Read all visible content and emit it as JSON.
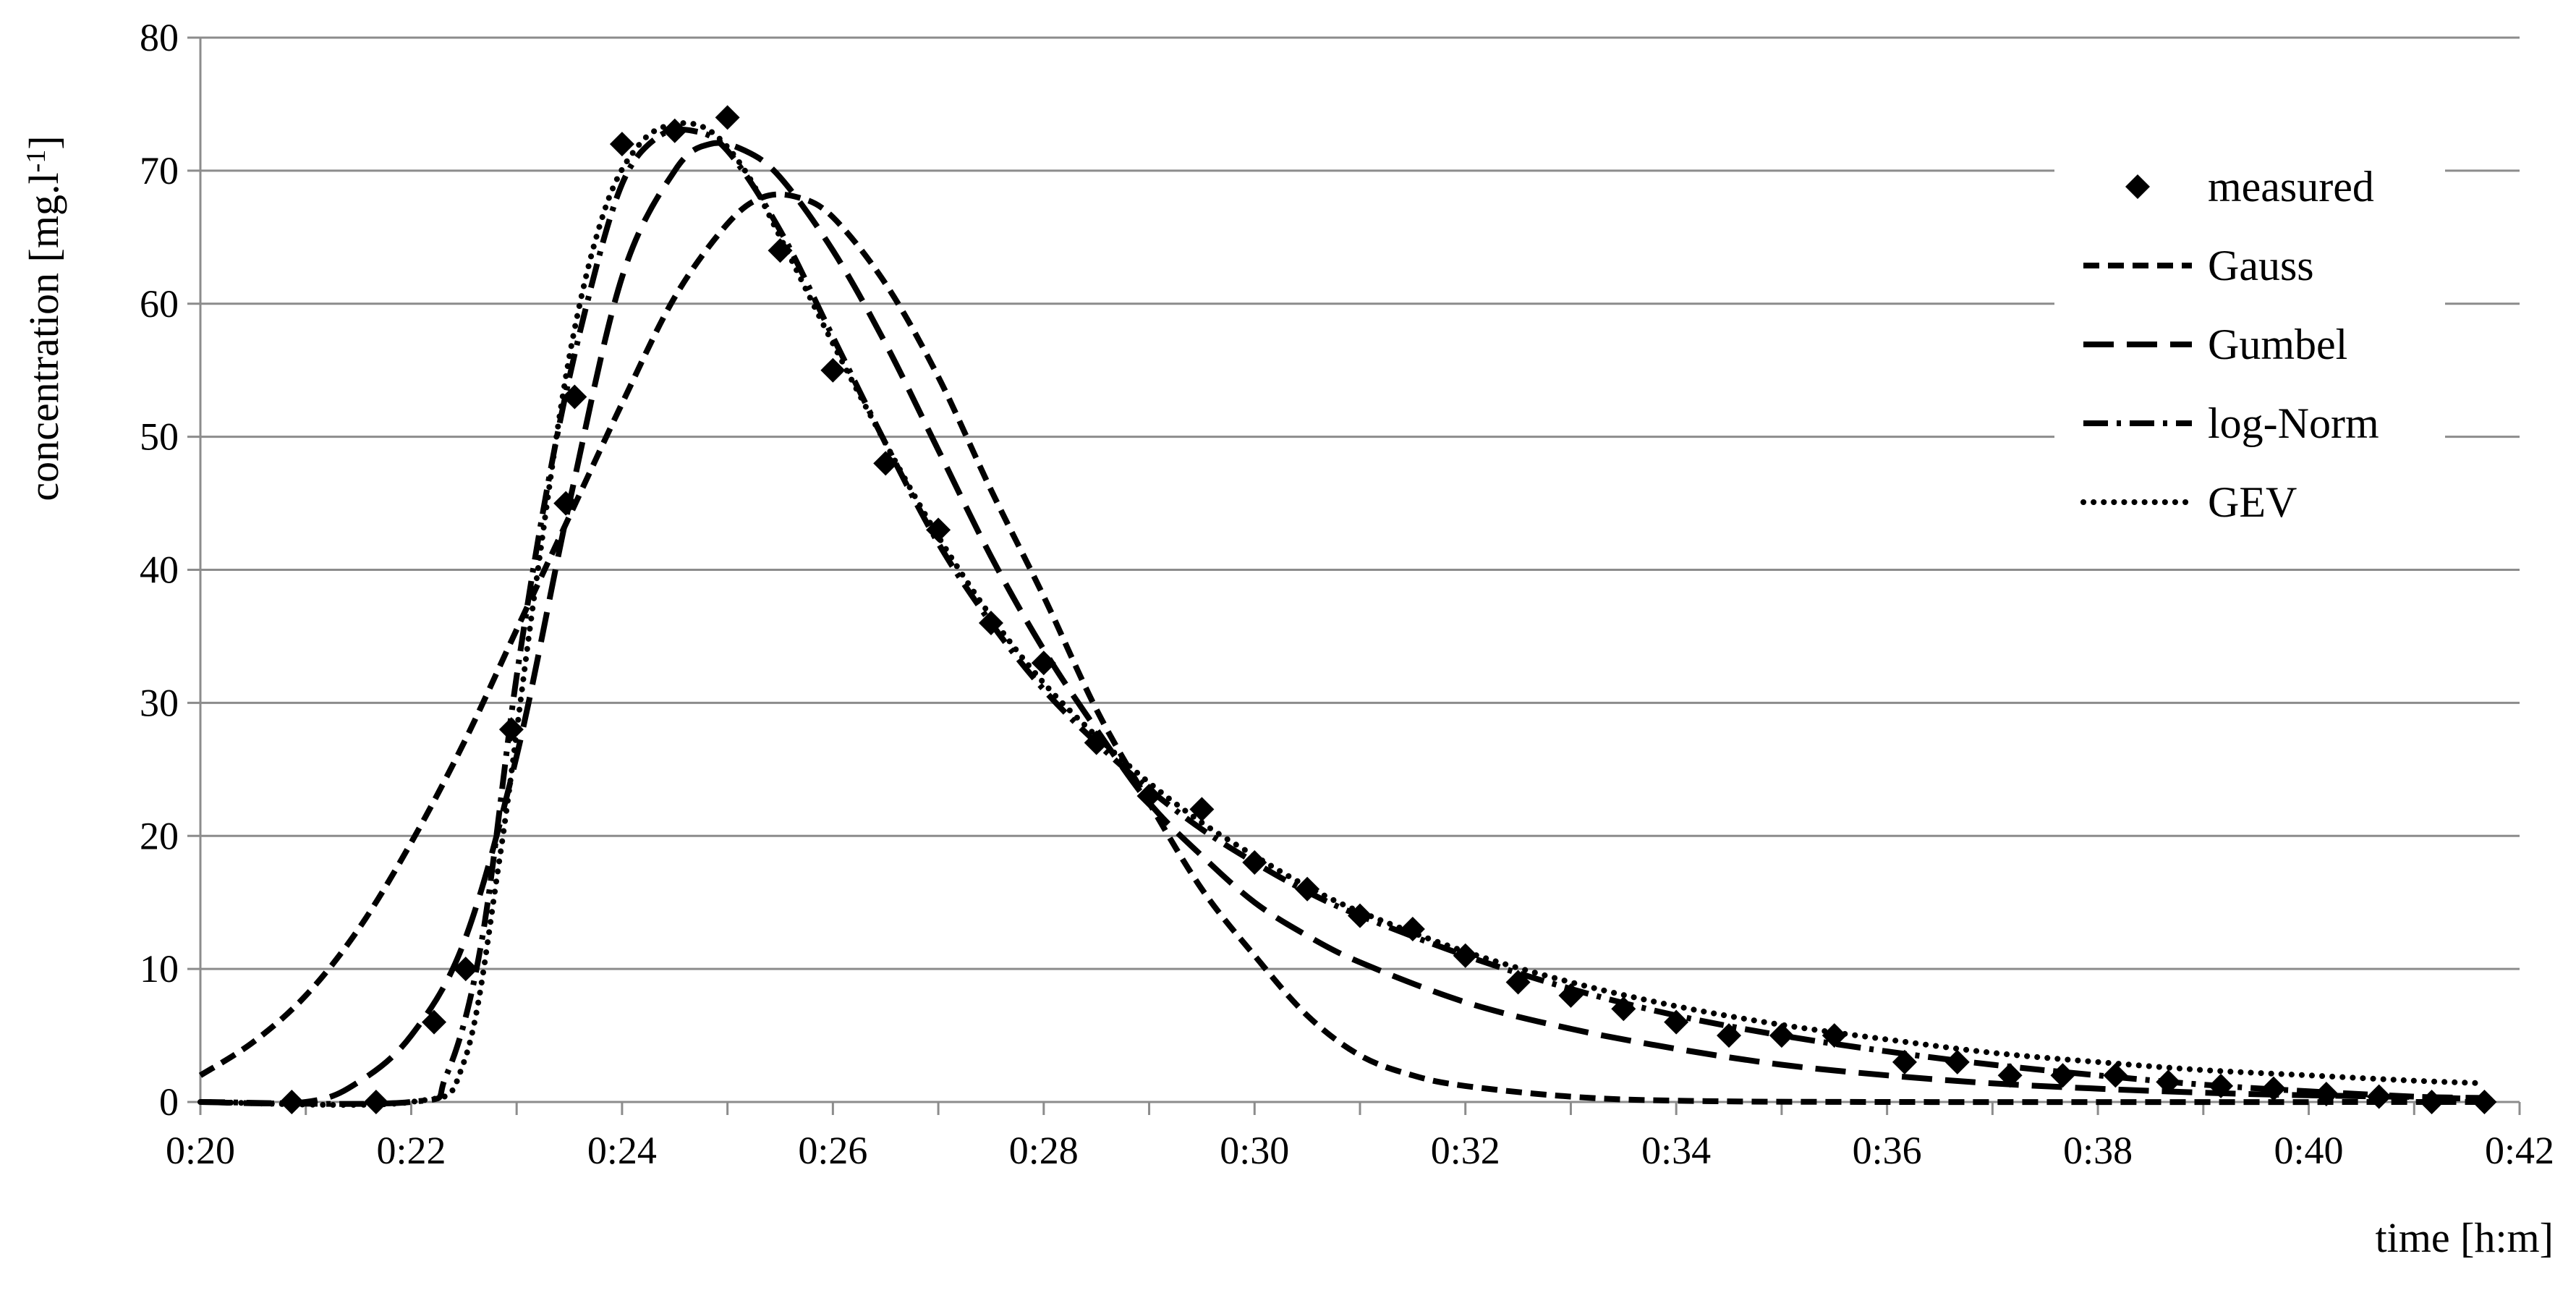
{
  "chart_data": {
    "type": "line",
    "xlabel": "time [h:m]",
    "ylabel": "concentration [mg.l",
    "ylabel_sup": "-1",
    "ylabel_end": "]",
    "xlim_minutes": [
      20,
      42
    ],
    "ylim": [
      0,
      80
    ],
    "x_ticks": [
      "0:20",
      "0:22",
      "0:24",
      "0:26",
      "0:28",
      "0:30",
      "0:32",
      "0:34",
      "0:36",
      "0:38",
      "0:40",
      "0:42"
    ],
    "y_ticks": [
      "0",
      "10",
      "20",
      "30",
      "40",
      "50",
      "60",
      "70",
      "80"
    ],
    "grid": "horizontal",
    "legend_position": "top-right",
    "measured": {
      "name": "measured",
      "marker": "diamond",
      "points": [
        [
          "0:20:52",
          0
        ],
        [
          "0:21:40",
          0
        ],
        [
          "0:22:13",
          6
        ],
        [
          "0:22:31",
          10
        ],
        [
          "0:22:57",
          28
        ],
        [
          "0:23:28",
          45
        ],
        [
          "0:23:33",
          53
        ],
        [
          "0:24:00",
          72
        ],
        [
          "0:24:30",
          73
        ],
        [
          "0:25:00",
          74
        ],
        [
          "0:25:30",
          64
        ],
        [
          "0:26:00",
          55
        ],
        [
          "0:26:30",
          48
        ],
        [
          "0:27:00",
          43
        ],
        [
          "0:27:30",
          36
        ],
        [
          "0:28:00",
          33
        ],
        [
          "0:28:30",
          27
        ],
        [
          "0:29:00",
          23
        ],
        [
          "0:29:30",
          22
        ],
        [
          "0:30:00",
          18
        ],
        [
          "0:30:30",
          16
        ],
        [
          "0:31:00",
          14
        ],
        [
          "0:31:30",
          13
        ],
        [
          "0:32:00",
          11
        ],
        [
          "0:32:30",
          9
        ],
        [
          "0:33:00",
          8
        ],
        [
          "0:33:30",
          7
        ],
        [
          "0:34:00",
          6
        ],
        [
          "0:34:30",
          5
        ],
        [
          "0:35:00",
          5
        ],
        [
          "0:35:30",
          5
        ],
        [
          "0:36:10",
          3
        ],
        [
          "0:36:40",
          3
        ],
        [
          "0:37:10",
          2
        ],
        [
          "0:37:40",
          2
        ],
        [
          "0:38:10",
          2
        ],
        [
          "0:38:40",
          1.5
        ],
        [
          "0:39:10",
          1.2
        ],
        [
          "0:39:40",
          1
        ],
        [
          "0:40:10",
          0.6
        ],
        [
          "0:40:40",
          0.4
        ],
        [
          "0:41:10",
          0
        ],
        [
          "0:41:40",
          0
        ]
      ]
    },
    "series": [
      {
        "name": "Gauss",
        "dash": "short",
        "points": [
          [
            "0:20:00",
            2
          ],
          [
            "0:20:30",
            4.5
          ],
          [
            "0:21:00",
            8
          ],
          [
            "0:21:30",
            13
          ],
          [
            "0:22:00",
            19.5
          ],
          [
            "0:22:30",
            27
          ],
          [
            "0:23:00",
            35.5
          ],
          [
            "0:23:30",
            44
          ],
          [
            "0:24:00",
            52.5
          ],
          [
            "0:24:30",
            60.5
          ],
          [
            "0:25:00",
            66
          ],
          [
            "0:25:20",
            68
          ],
          [
            "0:25:40",
            68
          ],
          [
            "0:26:00",
            66.5
          ],
          [
            "0:26:30",
            61.5
          ],
          [
            "0:27:00",
            54.5
          ],
          [
            "0:27:30",
            46
          ],
          [
            "0:28:00",
            38
          ],
          [
            "0:28:30",
            29.5
          ],
          [
            "0:29:00",
            22.5
          ],
          [
            "0:29:30",
            16
          ],
          [
            "0:30:00",
            11
          ],
          [
            "0:30:30",
            6.5
          ],
          [
            "0:31:00",
            3.5
          ],
          [
            "0:31:30",
            2
          ],
          [
            "0:32:00",
            1.2
          ],
          [
            "0:33:00",
            0.4
          ],
          [
            "0:34:00",
            0.1
          ],
          [
            "0:36:00",
            0
          ],
          [
            "0:41:40",
            0
          ]
        ]
      },
      {
        "name": "Gumbel",
        "dash": "long",
        "points": [
          [
            "0:20:00",
            0
          ],
          [
            "0:21:00",
            0
          ],
          [
            "0:21:30",
            1.5
          ],
          [
            "0:22:00",
            5
          ],
          [
            "0:22:30",
            12
          ],
          [
            "0:23:00",
            26
          ],
          [
            "0:23:30",
            45
          ],
          [
            "0:24:00",
            62
          ],
          [
            "0:24:30",
            70
          ],
          [
            "0:24:50",
            72
          ],
          [
            "0:25:10",
            71.5
          ],
          [
            "0:25:30",
            69.5
          ],
          [
            "0:26:00",
            64
          ],
          [
            "0:26:30",
            57
          ],
          [
            "0:27:00",
            49
          ],
          [
            "0:27:30",
            41
          ],
          [
            "0:28:00",
            34
          ],
          [
            "0:28:30",
            28
          ],
          [
            "0:29:00",
            22.5
          ],
          [
            "0:29:30",
            18.5
          ],
          [
            "0:30:00",
            15
          ],
          [
            "0:30:30",
            12.5
          ],
          [
            "0:31:00",
            10.5
          ],
          [
            "0:32:00",
            7.5
          ],
          [
            "0:33:00",
            5.5
          ],
          [
            "0:34:00",
            4
          ],
          [
            "0:35:00",
            2.8
          ],
          [
            "0:36:00",
            2
          ],
          [
            "0:37:00",
            1.4
          ],
          [
            "0:38:00",
            1
          ],
          [
            "0:39:00",
            0.7
          ],
          [
            "0:40:00",
            0.5
          ],
          [
            "0:41:40",
            0.3
          ]
        ]
      },
      {
        "name": "log-Norm",
        "dash": "dashdot",
        "points": [
          [
            "0:20:00",
            0
          ],
          [
            "0:22:00",
            0
          ],
          [
            "0:22:20",
            2
          ],
          [
            "0:22:40",
            12
          ],
          [
            "0:23:00",
            32
          ],
          [
            "0:23:20",
            48
          ],
          [
            "0:23:40",
            60
          ],
          [
            "0:24:00",
            69
          ],
          [
            "0:24:20",
            72.5
          ],
          [
            "0:24:40",
            73
          ],
          [
            "0:25:00",
            71.5
          ],
          [
            "0:25:30",
            65.5
          ],
          [
            "0:26:00",
            57.5
          ],
          [
            "0:26:30",
            49.5
          ],
          [
            "0:27:00",
            42
          ],
          [
            "0:27:30",
            36
          ],
          [
            "0:28:00",
            31
          ],
          [
            "0:28:30",
            27
          ],
          [
            "0:29:00",
            23.5
          ],
          [
            "0:29:30",
            20.5
          ],
          [
            "0:30:00",
            18
          ],
          [
            "0:30:30",
            15.8
          ],
          [
            "0:31:00",
            14
          ],
          [
            "0:32:00",
            11
          ],
          [
            "0:33:00",
            8.5
          ],
          [
            "0:34:00",
            6.5
          ],
          [
            "0:35:00",
            5
          ],
          [
            "0:36:00",
            3.8
          ],
          [
            "0:37:00",
            2.8
          ],
          [
            "0:38:00",
            2
          ],
          [
            "0:39:00",
            1.3
          ],
          [
            "0:40:00",
            0.8
          ],
          [
            "0:41:00",
            0.4
          ],
          [
            "0:41:40",
            0.2
          ]
        ]
      },
      {
        "name": "GEV",
        "dash": "dotted",
        "points": [
          [
            "0:20:00",
            0
          ],
          [
            "0:22:00",
            0
          ],
          [
            "0:22:30",
            3
          ],
          [
            "0:22:50",
            18
          ],
          [
            "0:23:10",
            38
          ],
          [
            "0:23:30",
            56
          ],
          [
            "0:23:50",
            67
          ],
          [
            "0:24:10",
            72
          ],
          [
            "0:24:30",
            73.5
          ],
          [
            "0:24:50",
            73
          ],
          [
            "0:25:10",
            70
          ],
          [
            "0:25:30",
            65
          ],
          [
            "0:26:00",
            57
          ],
          [
            "0:26:30",
            49.5
          ],
          [
            "0:27:00",
            42.5
          ],
          [
            "0:27:30",
            36.5
          ],
          [
            "0:28:00",
            31.5
          ],
          [
            "0:28:30",
            27.5
          ],
          [
            "0:29:00",
            24
          ],
          [
            "0:29:30",
            21
          ],
          [
            "0:30:00",
            18.5
          ],
          [
            "0:30:30",
            16.2
          ],
          [
            "0:31:00",
            14.3
          ],
          [
            "0:32:00",
            11.3
          ],
          [
            "0:33:00",
            9
          ],
          [
            "0:34:00",
            7.2
          ],
          [
            "0:35:00",
            5.8
          ],
          [
            "0:36:00",
            4.7
          ],
          [
            "0:37:00",
            3.7
          ],
          [
            "0:38:00",
            3
          ],
          [
            "0:39:00",
            2.4
          ],
          [
            "0:40:00",
            2
          ],
          [
            "0:41:00",
            1.6
          ],
          [
            "0:41:40",
            1.4
          ]
        ]
      }
    ]
  }
}
